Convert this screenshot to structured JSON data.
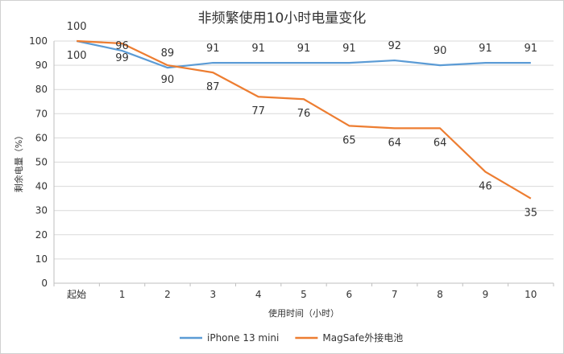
{
  "chart_data": {
    "type": "line",
    "title": "非频繁使用10小时电量变化",
    "xlabel": "使用时间（小时）",
    "ylabel": "剩余电量（%）",
    "categories": [
      "起始",
      "1",
      "2",
      "3",
      "4",
      "5",
      "6",
      "7",
      "8",
      "9",
      "10"
    ],
    "ylim": [
      0,
      100
    ],
    "yticks": [
      0,
      10,
      20,
      30,
      40,
      50,
      60,
      70,
      80,
      90,
      100
    ],
    "grid": true,
    "legend_position": "bottom",
    "series": [
      {
        "name": "iPhone 13 mini",
        "color": "#5b9bd5",
        "values": [
          100,
          96,
          89,
          91,
          91,
          91,
          91,
          92,
          90,
          91,
          91
        ],
        "labels": [
          "100",
          "",
          "89",
          "91",
          "91",
          "91",
          "91",
          "92",
          "90",
          "91",
          "91"
        ],
        "label_position": "above"
      },
      {
        "name": "MagSafe外接电池",
        "color": "#ed7d31",
        "values": [
          100,
          99,
          90,
          87,
          77,
          76,
          65,
          64,
          64,
          46,
          35
        ],
        "labels": [
          "100",
          "99",
          "90",
          "87",
          "77",
          "76",
          "65",
          "64",
          "64",
          "46",
          "35"
        ],
        "label_position": "below"
      }
    ],
    "extra_labels": [
      {
        "category_index": 1,
        "text": "96",
        "series_index": 0
      }
    ]
  }
}
